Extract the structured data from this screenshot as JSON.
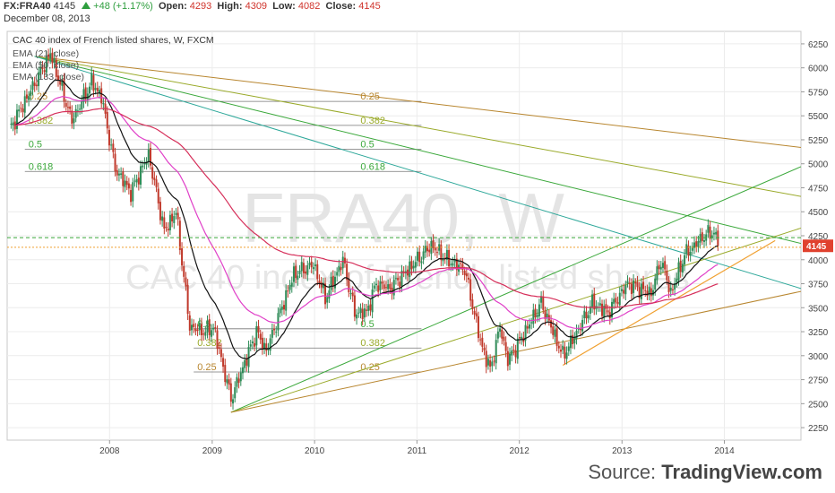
{
  "header": {
    "symbol": "FX:FRA40",
    "last": "4145",
    "change": "+48 (+1.17%)",
    "open_label": "Open:",
    "open": "4293",
    "high_label": "High:",
    "high": "4309",
    "low_label": "Low:",
    "low": "4082",
    "close_label": "Close:",
    "close": "4145",
    "date": "December 08, 2013"
  },
  "legend": {
    "title": "CAC 40 index of French listed shares, W, FXCM",
    "ema1": "EMA (21, close)",
    "ema2": "EMA (50, close)",
    "ema3": "EMA (133, close)"
  },
  "watermark": {
    "symbol": "FRA40, W",
    "name": "CAC 40 index of French listed shares"
  },
  "footer": {
    "source": "Source: ",
    "brand": "TradingView.com"
  },
  "colors": {
    "up": "#2e8b57",
    "down": "#c0392b",
    "ema21": "#111111",
    "ema50": "#e040c8",
    "ema133": "#d62f5a",
    "price_tag": "#e0412e",
    "dotted_green": "#3aa83a",
    "dotted_orange": "#f0a030"
  },
  "chart_data": {
    "type": "candlestick",
    "interval": "W",
    "y_axis": {
      "ticks": [
        2250,
        2500,
        2750,
        3000,
        3250,
        3500,
        3750,
        4000,
        4250,
        4500,
        4750,
        5000,
        5250,
        5500,
        5750,
        6000,
        6250
      ],
      "ylim": [
        2120,
        6380
      ]
    },
    "x_axis": {
      "ticks": [
        "2008",
        "2009",
        "2010",
        "2011",
        "2012",
        "2013",
        "2014"
      ],
      "xlim": [
        "2007-01-01",
        "2014-10-01"
      ]
    },
    "price_tag": "4145",
    "anchors": [
      [
        "2007-01-08",
        5350
      ],
      [
        "2007-04-02",
        5800
      ],
      [
        "2007-06-04",
        6150
      ],
      [
        "2007-07-23",
        5700
      ],
      [
        "2007-08-20",
        5450
      ],
      [
        "2007-10-29",
        5850
      ],
      [
        "2007-12-03",
        5700
      ],
      [
        "2008-01-21",
        4950
      ],
      [
        "2008-03-17",
        4700
      ],
      [
        "2008-05-19",
        5100
      ],
      [
        "2008-07-14",
        4300
      ],
      [
        "2008-08-25",
        4500
      ],
      [
        "2008-10-13",
        3300
      ],
      [
        "2008-12-08",
        3250
      ],
      [
        "2009-01-05",
        3300
      ],
      [
        "2009-03-09",
        2550
      ],
      [
        "2009-06-08",
        3250
      ],
      [
        "2009-07-13",
        3050
      ],
      [
        "2009-10-19",
        3850
      ],
      [
        "2009-12-28",
        3950
      ],
      [
        "2010-02-08",
        3600
      ],
      [
        "2010-04-12",
        4000
      ],
      [
        "2010-05-24",
        3450
      ],
      [
        "2010-07-05",
        3450
      ],
      [
        "2010-08-09",
        3750
      ],
      [
        "2010-09-27",
        3700
      ],
      [
        "2010-11-15",
        3850
      ],
      [
        "2011-02-21",
        4150
      ],
      [
        "2011-04-18",
        4000
      ],
      [
        "2011-06-20",
        3900
      ],
      [
        "2011-08-15",
        3150
      ],
      [
        "2011-09-19",
        2850
      ],
      [
        "2011-10-24",
        3300
      ],
      [
        "2011-11-21",
        2950
      ],
      [
        "2012-01-02",
        3150
      ],
      [
        "2012-03-19",
        3550
      ],
      [
        "2012-06-04",
        3000
      ],
      [
        "2012-07-16",
        3200
      ],
      [
        "2012-09-17",
        3550
      ],
      [
        "2012-11-12",
        3450
      ],
      [
        "2013-01-21",
        3750
      ],
      [
        "2013-04-15",
        3650
      ],
      [
        "2013-05-20",
        4000
      ],
      [
        "2013-06-24",
        3650
      ],
      [
        "2013-08-12",
        4050
      ],
      [
        "2013-10-21",
        4250
      ],
      [
        "2013-11-25",
        4290
      ],
      [
        "2013-12-09",
        4145
      ]
    ],
    "ema_periods": [
      21,
      50,
      133
    ],
    "horizontal_levels": [
      {
        "value": 4230,
        "color": "#3aa83a",
        "style": "dashed"
      },
      {
        "value": 4130,
        "color": "#f0a030",
        "style": "dotted"
      }
    ],
    "gann_fan_top": {
      "origin": [
        "2007-04-09",
        6120
      ],
      "to": [
        {
          "date": "2014-10-01",
          "value": 5170,
          "color": "#b8862f"
        },
        {
          "date": "2014-10-01",
          "value": 4660,
          "color": "#9aaa2a"
        },
        {
          "date": "2014-10-01",
          "value": 4170,
          "color": "#3aa83a"
        },
        {
          "date": "2014-10-01",
          "value": 3700,
          "color": "#2ea89a"
        }
      ]
    },
    "gann_fan_bottom": {
      "origin": [
        "2009-03-09",
        2410
      ],
      "to": [
        {
          "date": "2014-10-01",
          "value": 4970,
          "color": "#3aa83a"
        },
        {
          "date": "2014-10-01",
          "value": 4330,
          "color": "#9aaa2a"
        },
        {
          "date": "2014-10-01",
          "value": 3670,
          "color": "#b8862f"
        }
      ]
    },
    "trendline": {
      "from": [
        "2012-06-04",
        2900
      ],
      "to": [
        "2014-07-01",
        4200
      ],
      "color": "#f0a030"
    },
    "fib_top": {
      "from": "2007-03-05",
      "to": "2011-01-17",
      "levels": [
        {
          "label": "0.25",
          "value": 5650,
          "color": "#b8862f"
        },
        {
          "label": "0.382",
          "value": 5400,
          "color": "#9aaa2a"
        },
        {
          "label": "0.5",
          "value": 5150,
          "color": "#3aa83a"
        },
        {
          "label": "0.618",
          "value": 4920,
          "color": "#3aa83a"
        }
      ]
    },
    "fib_bottom": {
      "from": "2008-10-27",
      "to": "2011-01-17",
      "levels": [
        {
          "label": "0.5",
          "value": 3280,
          "color": "#3aa83a"
        },
        {
          "label": "0.382",
          "value": 3080,
          "color": "#9aaa2a"
        },
        {
          "label": "0.25",
          "value": 2830,
          "color": "#b8862f"
        }
      ]
    }
  }
}
